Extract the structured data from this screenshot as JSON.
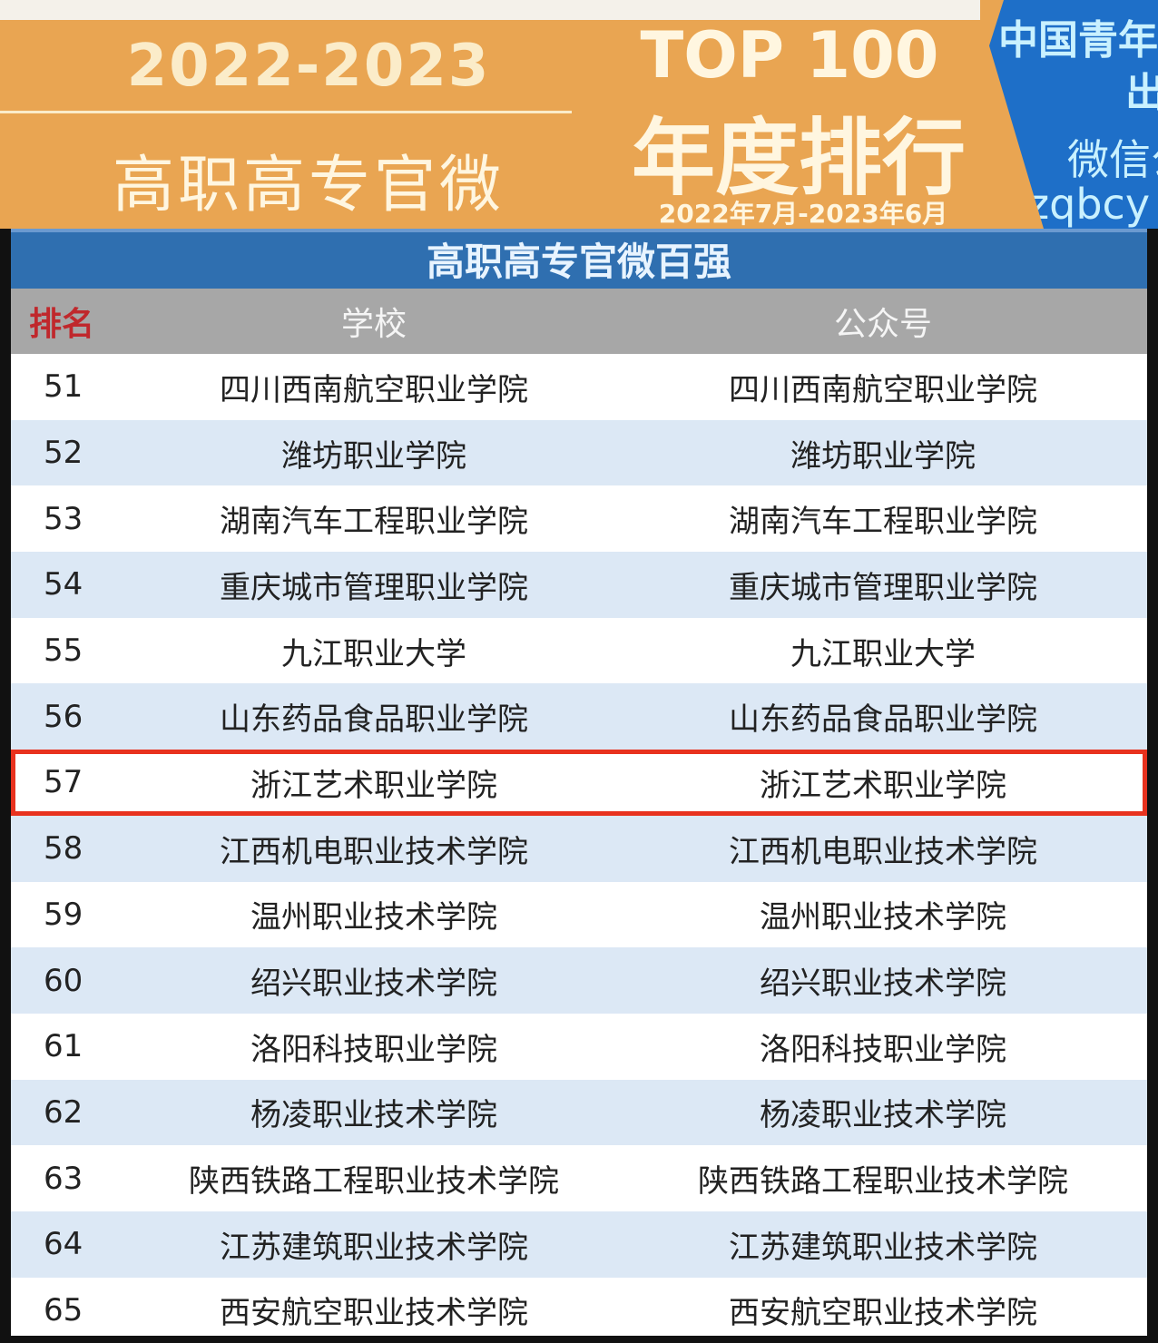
{
  "banner": {
    "years": "2022-2023",
    "subtitle": "高职高专官微",
    "top": "TOP 100",
    "annual": "年度排行榜",
    "period": "2022年7月-2023年6月",
    "publisher": {
      "line1": "中国青年",
      "line2": "出",
      "line3": "微信公",
      "line4": "zqbcy"
    }
  },
  "table": {
    "title": "高职高专官微百强",
    "headers": [
      "排名",
      "学校",
      "公众号"
    ],
    "highlight_rank": "57",
    "rows": [
      [
        "51",
        "四川西南航空职业学院",
        "四川西南航空职业学院"
      ],
      [
        "52",
        "潍坊职业学院",
        "潍坊职业学院"
      ],
      [
        "53",
        "湖南汽车工程职业学院",
        "湖南汽车工程职业学院"
      ],
      [
        "54",
        "重庆城市管理职业学院",
        "重庆城市管理职业学院"
      ],
      [
        "55",
        "九江职业大学",
        "九江职业大学"
      ],
      [
        "56",
        "山东药品食品职业学院",
        "山东药品食品职业学院"
      ],
      [
        "57",
        "浙江艺术职业学院",
        "浙江艺术职业学院"
      ],
      [
        "58",
        "江西机电职业技术学院",
        "江西机电职业技术学院"
      ],
      [
        "59",
        "温州职业技术学院",
        "温州职业技术学院"
      ],
      [
        "60",
        "绍兴职业技术学院",
        "绍兴职业技术学院"
      ],
      [
        "61",
        "洛阳科技职业学院",
        "洛阳科技职业学院"
      ],
      [
        "62",
        "杨凌职业技术学院",
        "杨凌职业技术学院"
      ],
      [
        "63",
        "陕西铁路工程职业技术学院",
        "陕西铁路工程职业技术学院"
      ],
      [
        "64",
        "江苏建筑职业技术学院",
        "江苏建筑职业技术学院"
      ],
      [
        "65",
        "西安航空职业技术学院",
        "西安航空职业技术学院"
      ]
    ]
  },
  "colors": {
    "orange": "#E9A552",
    "blue": "#2F6FB0",
    "highlight": "#E8321E",
    "stripe": "#DCE8F5"
  }
}
